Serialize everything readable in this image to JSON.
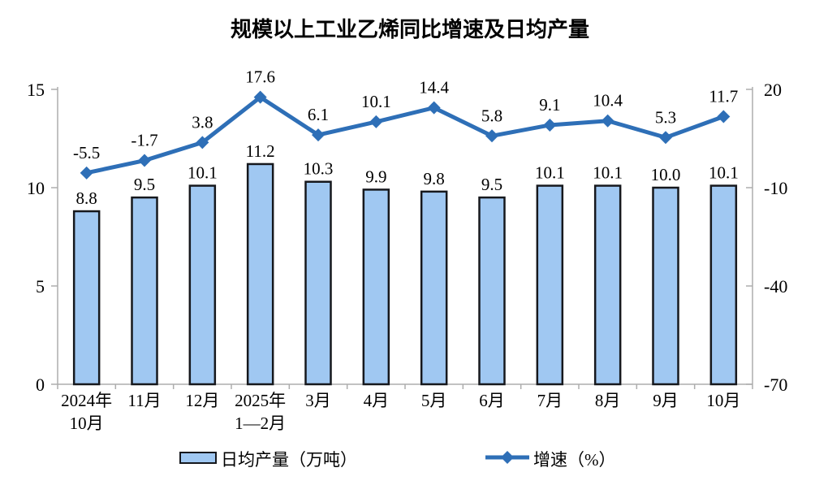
{
  "chart": {
    "title": "规模以上工业乙烯同比增速及日均产量"
  },
  "chart_data": {
    "type": "bar+line combo",
    "title": "规模以上工业乙烯同比增速及日均产量",
    "categories": [
      [
        "2024年",
        "10月"
      ],
      [
        "11月"
      ],
      [
        "12月"
      ],
      [
        "2025年",
        "1—2月"
      ],
      [
        "3月"
      ],
      [
        "4月"
      ],
      [
        "5月"
      ],
      [
        "6月"
      ],
      [
        "7月"
      ],
      [
        "8月"
      ],
      [
        "9月"
      ],
      [
        "10月"
      ]
    ],
    "series": [
      {
        "name": "日均产量（万吨）",
        "type": "bar",
        "axis": "left",
        "values": [
          8.8,
          9.5,
          10.1,
          11.2,
          10.3,
          9.9,
          9.8,
          9.5,
          10.1,
          10.1,
          10.0,
          10.1
        ]
      },
      {
        "name": "增速（%）",
        "type": "line",
        "axis": "right",
        "values": [
          -5.5,
          -1.7,
          3.8,
          17.6,
          6.1,
          10.1,
          14.4,
          5.8,
          9.1,
          10.4,
          5.3,
          11.7
        ]
      }
    ],
    "left_axis": {
      "min": 0,
      "max": 15,
      "ticks": [
        0,
        5,
        10,
        15
      ]
    },
    "right_axis": {
      "min": -70,
      "max": 20,
      "ticks": [
        -70,
        -40,
        -10,
        20
      ]
    },
    "legend": [
      {
        "label": "日均产量（万吨）",
        "swatch": "bar"
      },
      {
        "label": "增速（%）",
        "swatch": "line"
      }
    ],
    "grid": false,
    "legend_position": "bottom",
    "colors": {
      "bar_fill": "#A0C8F2",
      "bar_border": "#16181D",
      "line": "#2E6FB7",
      "axis": "#ADADAD",
      "text": "#000000"
    }
  }
}
